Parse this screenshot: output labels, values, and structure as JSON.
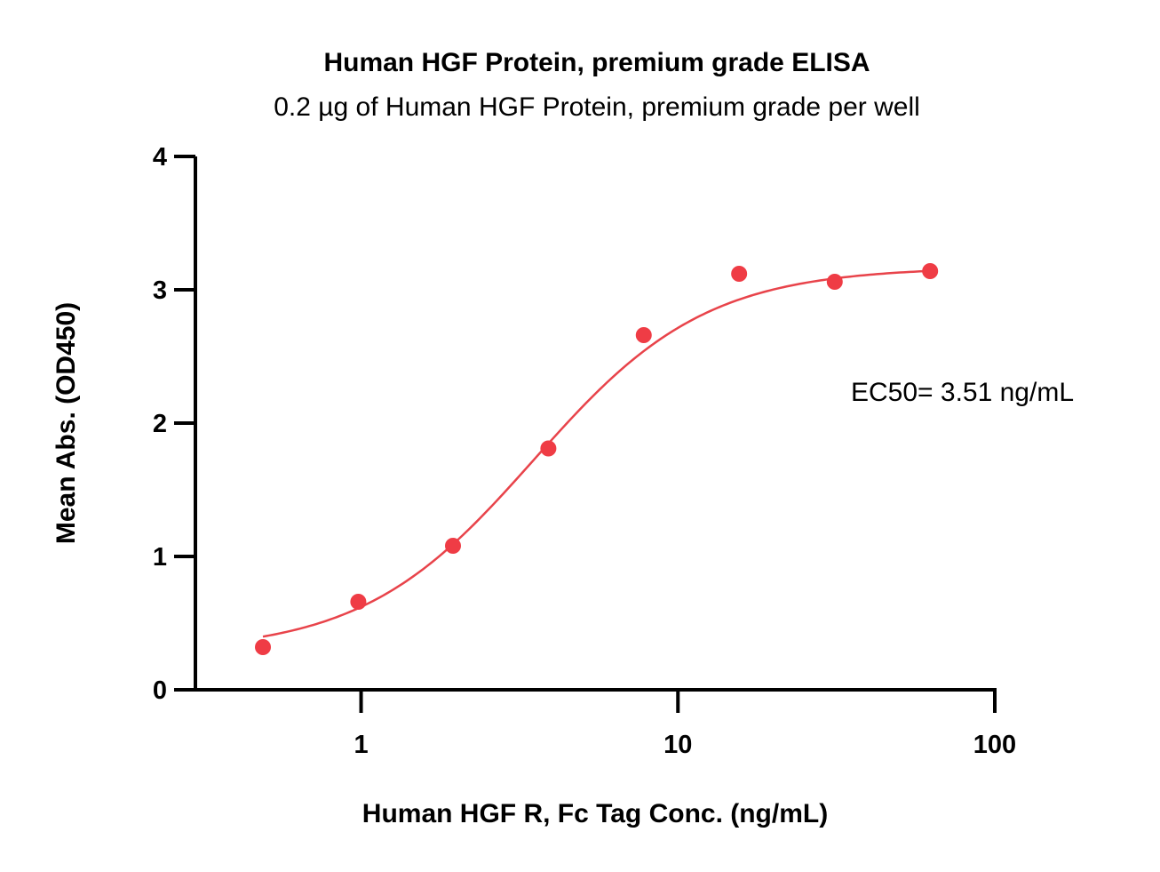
{
  "chart_data": {
    "type": "scatter",
    "title": "Human HGF Protein, premium grade ELISA",
    "subtitle": "0.2 µg of Human HGF Protein, premium grade per well",
    "xlabel": "Human HGF R, Fc Tag Conc. (ng/mL)",
    "ylabel": "Mean Abs. (OD450)",
    "xscale": "log",
    "xlim": [
      0.3,
      100
    ],
    "ylim": [
      0,
      4
    ],
    "x_ticks": [
      {
        "value": 1,
        "label": "1"
      },
      {
        "value": 10,
        "label": "10"
      },
      {
        "value": 100,
        "label": "100"
      }
    ],
    "y_ticks": [
      {
        "value": 0,
        "label": "0"
      },
      {
        "value": 1,
        "label": "1"
      },
      {
        "value": 2,
        "label": "2"
      },
      {
        "value": 3,
        "label": "3"
      },
      {
        "value": 4,
        "label": "4"
      }
    ],
    "series": [
      {
        "x": [
          0.49,
          0.98,
          1.95,
          3.9,
          7.8,
          15.6,
          31.25,
          62.5
        ],
        "y": [
          0.32,
          0.66,
          1.08,
          1.81,
          2.66,
          3.12,
          3.06,
          3.14
        ]
      }
    ],
    "fit": {
      "model": "4PL",
      "bottom": 0.28,
      "top": 3.17,
      "ec50": 3.51,
      "hill": 1.6,
      "x_range": [
        0.49,
        62.5
      ]
    },
    "annotation": "EC50= 3.51 ng/mL",
    "grid": false,
    "legend": "none",
    "colors": {
      "series": "#ef3c45",
      "curve": "#e8434a",
      "axis": "#000000"
    }
  }
}
